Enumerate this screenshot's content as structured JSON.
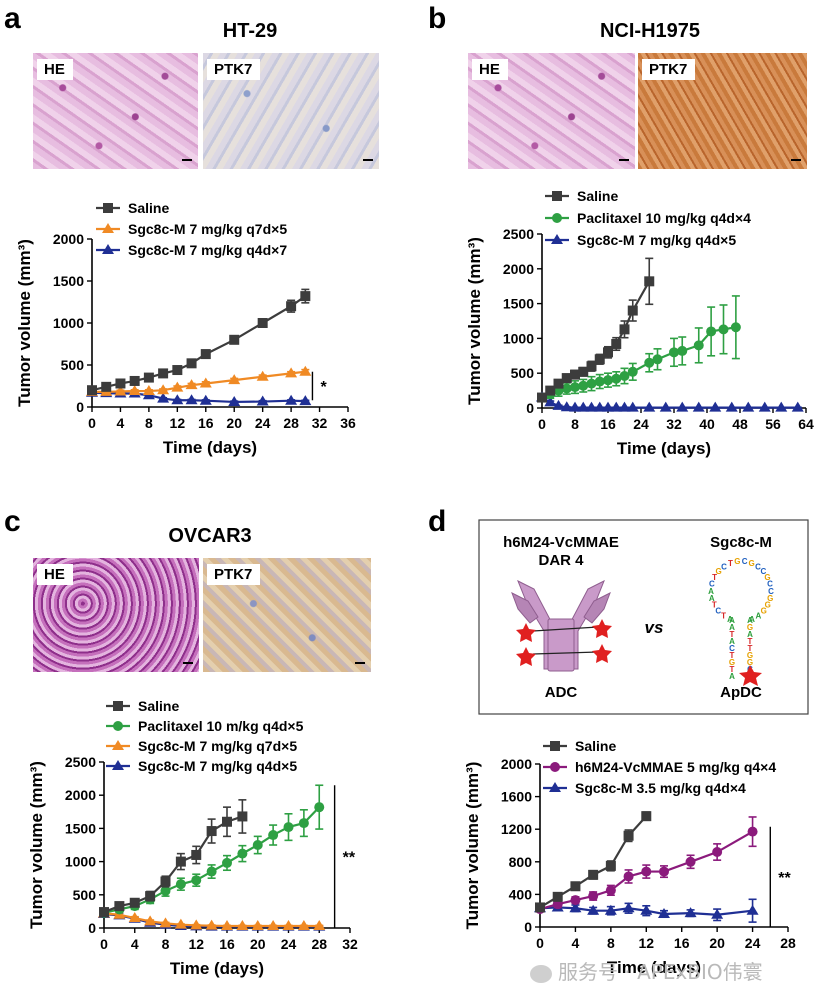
{
  "panels": [
    {
      "letter": "a",
      "title": "HT-29",
      "images": [
        "HE",
        "PTK7"
      ]
    },
    {
      "letter": "b",
      "title": "NCI-H1975",
      "images": [
        "HE",
        "PTK7"
      ]
    },
    {
      "letter": "c",
      "title": "OVCAR3",
      "images": [
        "HE",
        "PTK7"
      ]
    },
    {
      "letter": "d",
      "title": "",
      "images": []
    }
  ],
  "diagram": {
    "adc_name": "h6M24-VcMMAE",
    "adc_dar": "DAR 4",
    "adc_label": "ADC",
    "vs_label": "vs",
    "apdc_name": "Sgc8c-M",
    "apdc_label": "ApDC",
    "aptamer_sequence": "ATCTAACTGCTGCGCCGCCGGGAAAATACTGTACGGTTAGA"
  },
  "watermark": "服务号 · APExBIO伟寰",
  "colors": {
    "saline": "#3c3c3c",
    "paclitaxel": "#2ea043",
    "sgc_q7d": "#f08a24",
    "sgc_q4d": "#1f2f94",
    "adc": "#8b1a7c"
  },
  "chart_data": [
    {
      "panel": "a",
      "type": "line",
      "xlabel": "Time (days)",
      "ylabel": "Tumor volume (mm³)",
      "xlim": [
        0,
        36
      ],
      "ylim": [
        0,
        2000
      ],
      "xticks": [
        0,
        4,
        8,
        12,
        16,
        20,
        24,
        28,
        32,
        36
      ],
      "yticks": [
        0,
        500,
        1000,
        1500,
        2000
      ],
      "legend_position": "top",
      "annotations": [
        {
          "text": "*",
          "bracket_y": [
            80,
            420
          ],
          "x": 31
        }
      ],
      "series": [
        {
          "name": "Saline",
          "marker": "square",
          "color": "#3c3c3c",
          "x": [
            0,
            2,
            4,
            6,
            8,
            10,
            12,
            14,
            16,
            20,
            24,
            28,
            30
          ],
          "y": [
            200,
            240,
            280,
            310,
            350,
            400,
            440,
            520,
            630,
            800,
            1000,
            1200,
            1320
          ],
          "err": [
            20,
            20,
            25,
            25,
            25,
            30,
            30,
            30,
            30,
            30,
            35,
            70,
            80
          ]
        },
        {
          "name": "Sgc8c-M 7 mg/kg q7d×5",
          "marker": "triangle",
          "color": "#f08a24",
          "x": [
            0,
            2,
            4,
            6,
            8,
            10,
            12,
            14,
            16,
            20,
            24,
            28,
            30
          ],
          "y": [
            180,
            180,
            185,
            190,
            190,
            200,
            230,
            260,
            280,
            320,
            360,
            400,
            420
          ],
          "err": [
            15,
            15,
            15,
            15,
            15,
            15,
            20,
            20,
            20,
            20,
            20,
            20,
            25
          ]
        },
        {
          "name": "Sgc8c-M 7 mg/kg q4d×7",
          "marker": "triangle",
          "color": "#1f2f94",
          "x": [
            0,
            2,
            4,
            6,
            8,
            10,
            12,
            14,
            16,
            20,
            24,
            28,
            30
          ],
          "y": [
            170,
            165,
            160,
            160,
            140,
            100,
            80,
            80,
            75,
            60,
            65,
            75,
            70
          ],
          "err": [
            15,
            15,
            15,
            15,
            15,
            10,
            10,
            10,
            10,
            10,
            10,
            10,
            10
          ]
        }
      ]
    },
    {
      "panel": "b",
      "type": "line",
      "xlabel": "Time (days)",
      "ylabel": "Tumor volume (mm³)",
      "xlim": [
        0,
        64
      ],
      "ylim": [
        0,
        2500
      ],
      "xticks": [
        0,
        8,
        16,
        24,
        32,
        40,
        48,
        56,
        64
      ],
      "yticks": [
        0,
        500,
        1000,
        1500,
        2000,
        2500
      ],
      "legend_position": "top",
      "series": [
        {
          "name": "Saline",
          "marker": "square",
          "color": "#3c3c3c",
          "x": [
            0,
            2,
            4,
            6,
            8,
            10,
            12,
            14,
            16,
            18,
            20,
            22,
            26
          ],
          "y": [
            150,
            250,
            350,
            430,
            480,
            520,
            600,
            700,
            800,
            920,
            1130,
            1400,
            1820
          ],
          "err": [
            30,
            40,
            50,
            50,
            60,
            60,
            70,
            70,
            80,
            90,
            120,
            150,
            330
          ]
        },
        {
          "name": "Paclitaxel 10 mg/kg q4d×4",
          "marker": "circle",
          "color": "#2ea043",
          "x": [
            0,
            2,
            4,
            6,
            8,
            10,
            12,
            14,
            16,
            18,
            20,
            22,
            26,
            28,
            32,
            34,
            38,
            41,
            44,
            47
          ],
          "y": [
            150,
            200,
            250,
            280,
            300,
            320,
            350,
            380,
            400,
            420,
            460,
            520,
            650,
            700,
            800,
            820,
            900,
            1100,
            1130,
            1160
          ],
          "err": [
            40,
            60,
            80,
            80,
            90,
            90,
            100,
            100,
            100,
            100,
            110,
            120,
            130,
            150,
            200,
            200,
            250,
            350,
            350,
            450
          ]
        },
        {
          "name": "Sgc8c-M 7 mg/kg q4d×5",
          "marker": "triangle",
          "color": "#1f2f94",
          "x": [
            0,
            2,
            4,
            6,
            8,
            10,
            12,
            14,
            16,
            18,
            20,
            22,
            26,
            30,
            34,
            38,
            42,
            46,
            50,
            54,
            58,
            62
          ],
          "y": [
            150,
            80,
            30,
            10,
            5,
            5,
            5,
            5,
            5,
            5,
            5,
            5,
            5,
            5,
            5,
            5,
            5,
            5,
            5,
            5,
            5,
            5
          ],
          "err": [
            30,
            20,
            10,
            5,
            5,
            5,
            5,
            5,
            5,
            5,
            5,
            5,
            5,
            5,
            5,
            5,
            5,
            5,
            5,
            5,
            5,
            5
          ]
        }
      ]
    },
    {
      "panel": "c",
      "type": "line",
      "xlabel": "Time (days)",
      "ylabel": "Tumor volume (mm³)",
      "xlim": [
        0,
        32
      ],
      "ylim": [
        0,
        2500
      ],
      "xticks": [
        0,
        4,
        8,
        12,
        16,
        20,
        24,
        28,
        32
      ],
      "yticks": [
        0,
        500,
        1000,
        1500,
        2000,
        2500
      ],
      "legend_position": "top",
      "annotations": [
        {
          "text": "**",
          "bracket_y": [
            0,
            2150
          ],
          "x": 30
        }
      ],
      "series": [
        {
          "name": "Saline",
          "marker": "square",
          "color": "#3c3c3c",
          "x": [
            0,
            2,
            4,
            6,
            8,
            10,
            12,
            14,
            16,
            18
          ],
          "y": [
            240,
            330,
            380,
            480,
            700,
            1000,
            1100,
            1460,
            1600,
            1680
          ],
          "err": [
            40,
            50,
            60,
            70,
            80,
            120,
            130,
            180,
            220,
            250
          ]
        },
        {
          "name": "Paclitaxel 10 m/kg q4d×5",
          "marker": "circle",
          "color": "#2ea043",
          "x": [
            0,
            2,
            4,
            6,
            8,
            10,
            12,
            14,
            16,
            18,
            20,
            22,
            24,
            26,
            28
          ],
          "y": [
            230,
            280,
            330,
            430,
            560,
            660,
            720,
            850,
            980,
            1120,
            1250,
            1400,
            1520,
            1580,
            1820
          ],
          "err": [
            30,
            40,
            50,
            60,
            80,
            90,
            90,
            100,
            110,
            120,
            130,
            150,
            200,
            200,
            330
          ]
        },
        {
          "name": "Sgc8c-M 7 mg/kg q7d×5",
          "marker": "triangle",
          "color": "#f08a24",
          "x": [
            0,
            2,
            4,
            6,
            8,
            10,
            12,
            14,
            16,
            18,
            20,
            22,
            24,
            26,
            28
          ],
          "y": [
            220,
            200,
            150,
            100,
            70,
            50,
            40,
            35,
            30,
            30,
            30,
            30,
            30,
            30,
            30
          ],
          "err": [
            30,
            30,
            20,
            20,
            15,
            10,
            10,
            10,
            10,
            10,
            10,
            10,
            10,
            10,
            10
          ]
        },
        {
          "name": "Sgc8c-M 7 mg/kg q4d×5",
          "marker": "triangle",
          "color": "#1f2f94",
          "x": [
            0,
            2,
            4,
            6,
            8,
            10,
            12,
            14,
            16,
            18,
            20,
            22,
            24,
            26,
            28
          ],
          "y": [
            210,
            190,
            140,
            80,
            50,
            30,
            25,
            20,
            20,
            20,
            20,
            20,
            20,
            20,
            20
          ],
          "err": [
            30,
            30,
            20,
            15,
            10,
            10,
            10,
            10,
            10,
            10,
            10,
            10,
            10,
            10,
            10
          ]
        }
      ]
    },
    {
      "panel": "d",
      "type": "line",
      "xlabel": "Time (days)",
      "ylabel": "Tumor volume (mm³)",
      "xlim": [
        0,
        28
      ],
      "ylim": [
        0,
        2000
      ],
      "xticks": [
        0,
        4,
        8,
        12,
        16,
        20,
        24,
        28
      ],
      "yticks": [
        0,
        400,
        800,
        1200,
        1600,
        2000
      ],
      "legend_position": "top",
      "annotations": [
        {
          "text": "**",
          "bracket_y": [
            0,
            1230
          ],
          "x": 26
        }
      ],
      "series": [
        {
          "name": "Saline",
          "marker": "square",
          "color": "#3c3c3c",
          "x": [
            0,
            2,
            4,
            6,
            8,
            10,
            12
          ],
          "y": [
            240,
            370,
            500,
            640,
            750,
            1120,
            1360
          ],
          "err": [
            30,
            30,
            40,
            50,
            60,
            70,
            50
          ]
        },
        {
          "name": "h6M24-VcMMAE 5 mg/kg q4×4",
          "marker": "circle",
          "color": "#8b1a7c",
          "x": [
            0,
            2,
            4,
            6,
            8,
            10,
            12,
            14,
            17,
            20,
            24
          ],
          "y": [
            220,
            280,
            330,
            380,
            450,
            620,
            680,
            680,
            800,
            920,
            1170
          ],
          "err": [
            30,
            40,
            40,
            50,
            60,
            80,
            80,
            70,
            80,
            100,
            180
          ]
        },
        {
          "name": "Sgc8c-M 3.5 mg/kg q4d×4",
          "marker": "triangle",
          "color": "#1f2f94",
          "x": [
            0,
            2,
            4,
            6,
            8,
            10,
            12,
            14,
            17,
            20,
            24
          ],
          "y": [
            230,
            240,
            230,
            200,
            200,
            230,
            200,
            160,
            170,
            150,
            200
          ],
          "err": [
            30,
            40,
            40,
            40,
            50,
            60,
            60,
            40,
            40,
            70,
            140
          ]
        }
      ]
    }
  ]
}
